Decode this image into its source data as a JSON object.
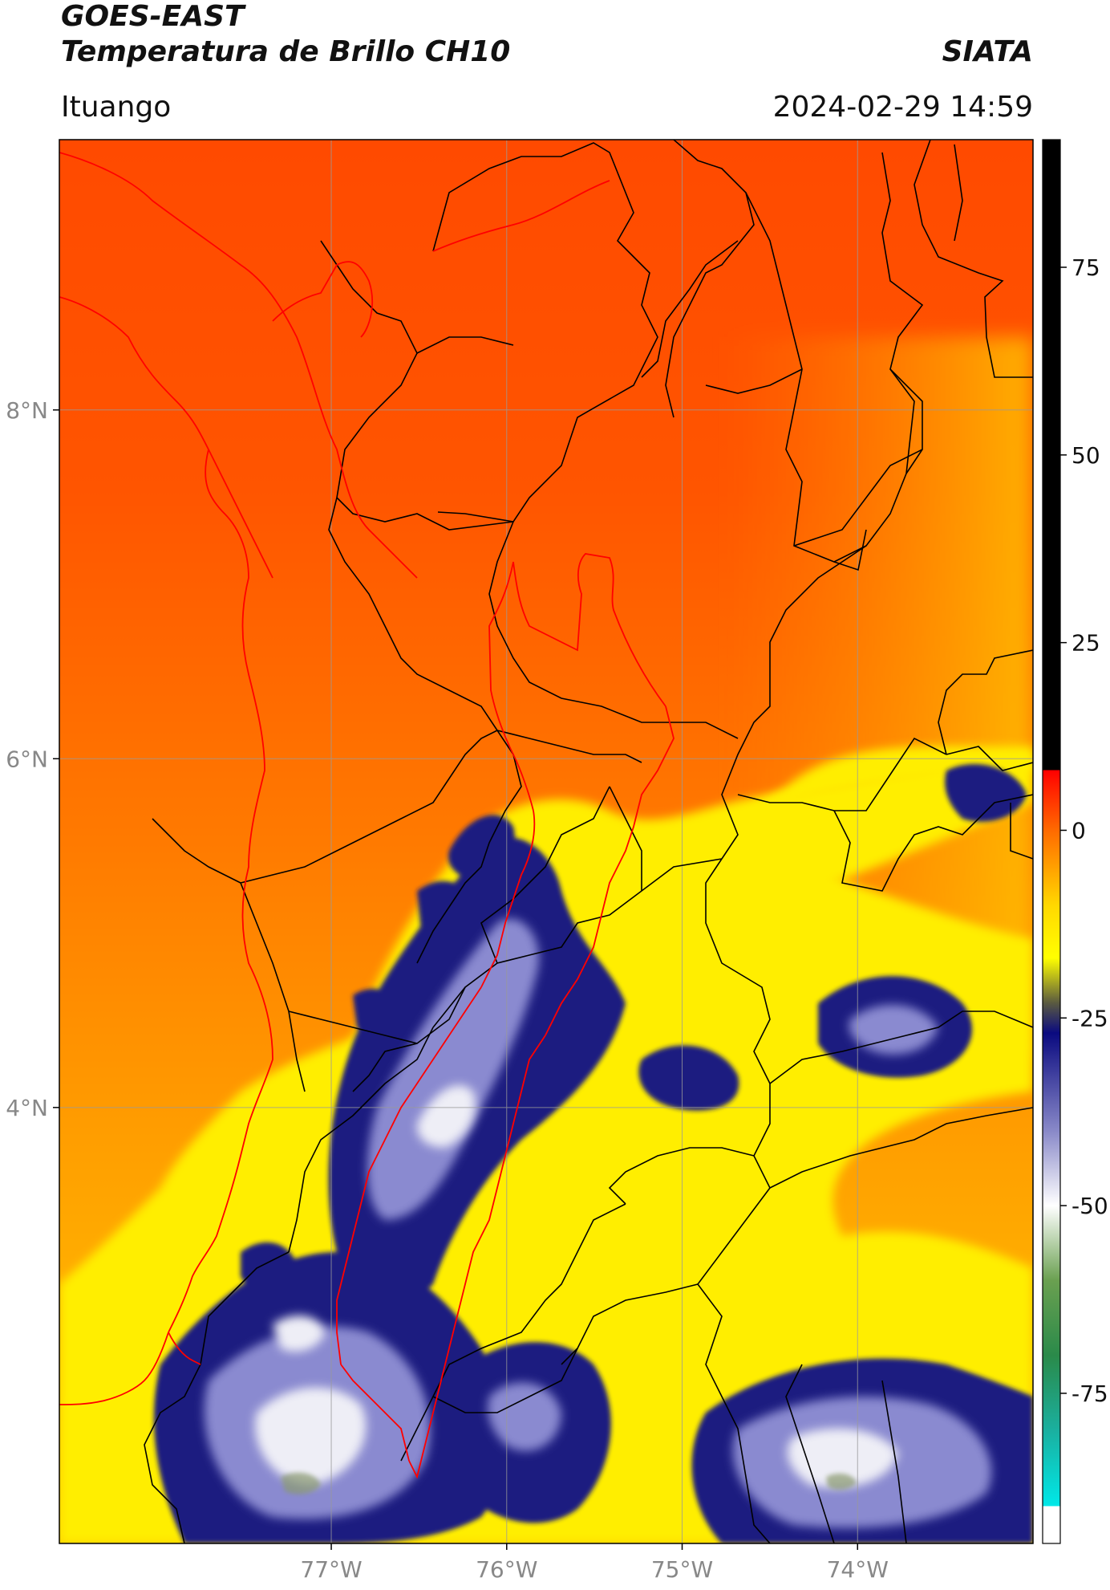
{
  "header": {
    "satellite": "GOES-EAST",
    "product": "Temperatura de Brillo CH10",
    "organization": "SIATA",
    "location": "Ituango",
    "datetime": "2024-02-29 14:59"
  },
  "map": {
    "lon_range": [
      -78.55,
      -73.0
    ],
    "lat_range": [
      1.5,
      9.55
    ],
    "gridlines": true,
    "grid_color": "#9a9a9a",
    "x_tick_labels": [
      {
        "lon": -77,
        "label": "77°W"
      },
      {
        "lon": -76,
        "label": "76°W"
      },
      {
        "lon": -75,
        "label": "75°W"
      },
      {
        "lon": -74,
        "label": "74°W"
      }
    ],
    "y_tick_labels": [
      {
        "lat": 8,
        "label": "8°N"
      },
      {
        "lat": 6,
        "label": "6°N"
      },
      {
        "lat": 4,
        "label": "4°N"
      }
    ],
    "boundary_color": "#000000",
    "coast_and_basin_color": "#ff0000"
  },
  "colorbar": {
    "range": [
      -95,
      92
    ],
    "ticks": [
      {
        "value": 75,
        "label": "75"
      },
      {
        "value": 50,
        "label": "50"
      },
      {
        "value": 25,
        "label": "25"
      },
      {
        "value": 0,
        "label": "0"
      },
      {
        "value": -25,
        "label": "-25"
      },
      {
        "value": -50,
        "label": "-50"
      },
      {
        "value": -75,
        "label": "-75"
      }
    ],
    "stops": [
      {
        "value": 92,
        "color": "#000000"
      },
      {
        "value": 8,
        "color": "#000000"
      },
      {
        "value": 8,
        "color": "#ff0000"
      },
      {
        "value": 0,
        "color": "#ff6a00"
      },
      {
        "value": -10,
        "color": "#ffd800"
      },
      {
        "value": -17,
        "color": "#ffff00"
      },
      {
        "value": -23,
        "color": "#5a5a40"
      },
      {
        "value": -27,
        "color": "#0a0a80"
      },
      {
        "value": -40,
        "color": "#8888c8"
      },
      {
        "value": -50,
        "color": "#ffffff"
      },
      {
        "value": -60,
        "color": "#6aa050"
      },
      {
        "value": -70,
        "color": "#2a8a4a"
      },
      {
        "value": -80,
        "color": "#1ab0a0"
      },
      {
        "value": -90,
        "color": "#00e8e8"
      },
      {
        "value": -90,
        "color": "#ffffff"
      },
      {
        "value": -95,
        "color": "#ffffff"
      }
    ]
  }
}
